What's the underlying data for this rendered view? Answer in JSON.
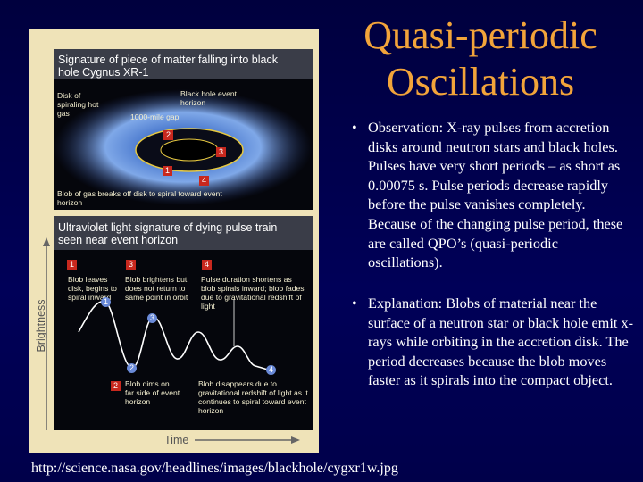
{
  "slide": {
    "title": "Quasi-periodic Oscillations",
    "bullets": [
      "Observation: X-ray pulses from accretion disks around neutron stars and black holes. Pulses have very short periods – as short as 0.00075 s.  Pulse periods decrease rapidly before the pulse vanishes completely. Because of the changing pulse period, these are called QPO’s (quasi-periodic oscillations).",
      "Explanation: Blobs of material near the surface of a neutron star or black hole emit x-rays while orbiting in the accretion disk. The period decreases because the  blob moves faster as it spirals into the compact object."
    ],
    "source_url": "http://science.nasa.gov/headlines/images/blackhole/cygxr1w.jpg"
  },
  "figure": {
    "top_panel": {
      "title": "Signature of piece of matter falling into black hole Cygnus XR-1",
      "labels": [
        "Disk of spiraling hot gas",
        "Black hole event horizon",
        "1000-mile gap",
        "Blob of gas breaks off disk to spiral toward event horizon"
      ],
      "markers": [
        "2",
        "3",
        "1",
        "4"
      ]
    },
    "bottom_panel": {
      "title": "Ultraviolet light signature of dying pulse train seen near event horizon",
      "labels": [
        "Blob leaves disk, begins to spiral inward",
        "Blob brightens but does not return to same point in orbit",
        "Pulse duration shortens as blob spirals inward; blob fades due to gravitational redshift of light",
        "Blob dims on far side of event horizon",
        "Blob disappears due to gravitational redshift of light as it continues to spiral toward event horizon"
      ],
      "boxed_markers": [
        "1",
        "3",
        "4",
        "2"
      ],
      "curve_markers": [
        "1",
        "2",
        "3",
        "4"
      ]
    },
    "y_axis_label": "Brightness",
    "x_axis_label": "Time"
  }
}
